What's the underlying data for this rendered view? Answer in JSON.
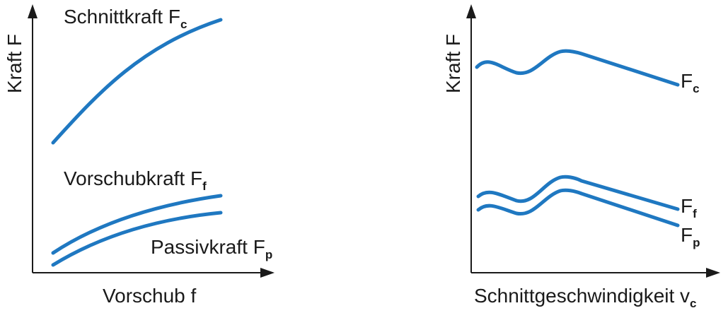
{
  "left_chart": {
    "ylabel": "Kraft F",
    "xlabel": "Vorschub f",
    "curves": [
      {
        "label": "Schnittkraft F",
        "sub": "c"
      },
      {
        "label": "Vorschubkraft F",
        "sub": "f"
      },
      {
        "label": "Passivkraft F",
        "sub": "p"
      }
    ]
  },
  "right_chart": {
    "ylabel": "Kraft F",
    "xlabel_main": "Schnittgeschwindigkeit v",
    "xlabel_sub": "c",
    "curves": [
      {
        "label": "F",
        "sub": "c"
      },
      {
        "label": "F",
        "sub": "f"
      },
      {
        "label": "F",
        "sub": "p"
      }
    ]
  },
  "colors": {
    "curve": "#1f78c1",
    "axis": "#1a1a1a"
  }
}
